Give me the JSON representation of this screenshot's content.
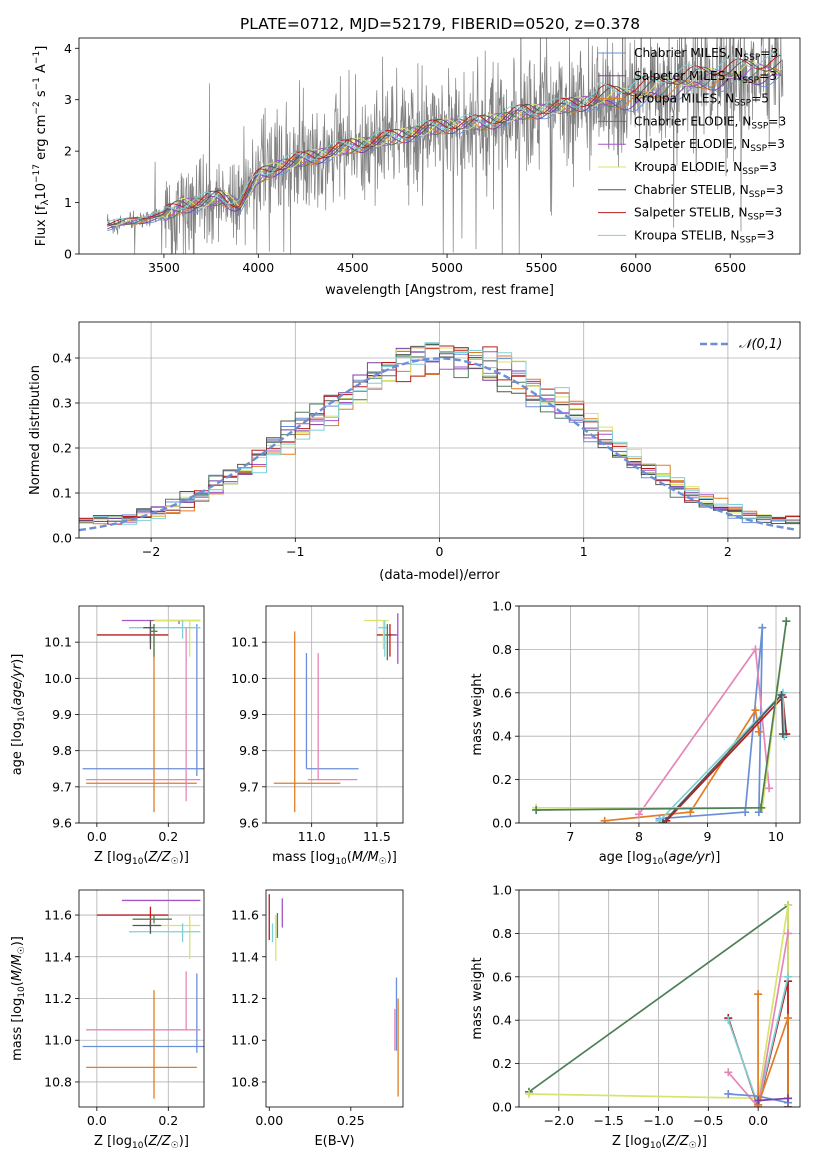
{
  "figure": {
    "title": "PLATE=0712, MJD=52179, FIBERID=0520, z=0.378"
  },
  "colors": {
    "Chabrier MILES": "#6a8fd8",
    "Salpeter MILES": "#7a3fa0",
    "Kroupa MILES": "#e07d25",
    "Chabrier ELODIE": "#4f7f5a",
    "Salpeter ELODIE": "#a555c7",
    "Kroupa ELODIE": "#d9e46c",
    "Chabrier STELIB": "#555555",
    "Salpeter STELIB": "#b81d1d",
    "Kroupa STELIB": "#7fd0d6",
    "observed": "#808080",
    "gaussian": "#6a8fd8",
    "pink": "#e586b8"
  },
  "chart_data": [
    {
      "id": "spectrum",
      "type": "line",
      "title": "PLATE=0712, MJD=52179, FIBERID=0520, z=0.378",
      "xlabel": "wavelength [Angstrom, rest frame]",
      "ylabel": "Flux [f_λ 10⁻¹⁷ erg cm⁻² s⁻¹ A⁻¹]",
      "xlim": [
        3050,
        6870
      ],
      "ylim": [
        0,
        4.2
      ],
      "xticks": [
        3500,
        4000,
        4500,
        5000,
        5500,
        6000,
        6500
      ],
      "yticks": [
        0,
        1,
        2,
        3,
        4
      ],
      "legend_position": "top-right",
      "model_anchors": {
        "x": [
          3200,
          3350,
          3500,
          3600,
          3700,
          3800,
          3900,
          4000,
          4100,
          4200,
          4300,
          4500,
          4700,
          4860,
          5000,
          5200,
          5400,
          5600,
          5800,
          6000,
          6200,
          6400,
          6600,
          6780
        ],
        "y": [
          0.55,
          0.65,
          0.75,
          0.95,
          1.0,
          1.1,
          0.95,
          1.5,
          1.7,
          1.8,
          1.9,
          2.1,
          2.25,
          2.4,
          2.5,
          2.55,
          2.75,
          2.85,
          3.0,
          3.1,
          3.3,
          3.45,
          3.55,
          3.6
        ]
      },
      "legend": [
        {
          "label": "Chabrier MILES, N",
          "sub": "SSP",
          "suffix": "=3"
        },
        {
          "label": "Salpeter MILES, N",
          "sub": "SSP",
          "suffix": "=3"
        },
        {
          "label": "Kroupa MILES, N",
          "sub": "SSP",
          "suffix": "=5"
        },
        {
          "label": "Chabrier ELODIE, N",
          "sub": "SSP",
          "suffix": "=3"
        },
        {
          "label": "Salpeter ELODIE, N",
          "sub": "SSP",
          "suffix": "=3"
        },
        {
          "label": "Kroupa ELODIE, N",
          "sub": "SSP",
          "suffix": "=3"
        },
        {
          "label": "Chabrier STELIB, N",
          "sub": "SSP",
          "suffix": "=3"
        },
        {
          "label": "Salpeter STELIB, N",
          "sub": "SSP",
          "suffix": "=3"
        },
        {
          "label": "Kroupa STELIB, N",
          "sub": "SSP",
          "suffix": "=3"
        }
      ]
    },
    {
      "id": "residuals",
      "type": "line",
      "xlabel": "(data-model)/error",
      "ylabel": "Normed distribution",
      "xlim": [
        -2.5,
        2.5
      ],
      "ylim": [
        0,
        0.48
      ],
      "xticks": [
        -2,
        -1,
        0,
        1,
        2
      ],
      "yticks": [
        0.0,
        0.1,
        0.2,
        0.3,
        0.4
      ],
      "grid": true,
      "legend": "𝒩(0,1)",
      "legend_position": "top-right",
      "bin_width": 0.1
    },
    {
      "id": "age_vs_z",
      "type": "scatter",
      "xlabel": "Z [log10(Z/Z☉)]",
      "ylabel": "age [log10(age/yr)]",
      "xlim": [
        -0.05,
        0.3
      ],
      "ylim": [
        9.6,
        10.2
      ],
      "xticks": [
        0.0,
        0.2
      ],
      "yticks": [
        9.6,
        9.7,
        9.8,
        9.9,
        10.0,
        10.1
      ],
      "grid": true,
      "points": [
        {
          "model": "Chabrier MILES",
          "x": 0.28,
          "y": 9.75,
          "xerr": [
            0.32,
            0.02
          ],
          "yerr": [
            0.02,
            0.4
          ]
        },
        {
          "model": "Kroupa MILES",
          "x": 0.16,
          "y": 9.71,
          "xerr": [
            0.19,
            0.12
          ],
          "yerr": [
            0.08,
            0.44
          ]
        },
        {
          "model": "pink",
          "x": 0.25,
          "y": 9.72,
          "xerr": [
            0.28,
            0.04
          ],
          "yerr": [
            0.06,
            0.42
          ]
        },
        {
          "model": "Salpeter STELIB",
          "x": 0.15,
          "y": 10.12,
          "xerr": [
            0.15,
            0.05
          ],
          "yerr": [
            0.02,
            0.02
          ]
        },
        {
          "model": "Salpeter ELODIE",
          "x": 0.23,
          "y": 10.16,
          "xerr": [
            0.16,
            0.06
          ],
          "yerr": [
            0.01,
            0.0
          ]
        },
        {
          "model": "Kroupa ELODIE",
          "x": 0.26,
          "y": 10.16,
          "xerr": [
            0.1,
            0.03
          ],
          "yerr": [
            0.1,
            0.0
          ]
        },
        {
          "model": "Kroupa STELIB",
          "x": 0.24,
          "y": 10.14,
          "xerr": [
            0.15,
            0.05
          ],
          "yerr": [
            0.03,
            0.02
          ]
        },
        {
          "model": "Chabrier STELIB",
          "x": 0.15,
          "y": 10.14,
          "xerr": [
            0.02,
            0.01
          ],
          "yerr": [
            0.06,
            0.02
          ]
        },
        {
          "model": "Chabrier ELODIE",
          "x": 0.16,
          "y": 10.13,
          "xerr": [
            0.01,
            0.01
          ],
          "yerr": [
            0.07,
            0.02
          ]
        }
      ]
    },
    {
      "id": "age_vs_mass",
      "type": "scatter",
      "xlabel": "mass [log10(M/M☉)]",
      "xlim": [
        10.65,
        11.7
      ],
      "ylim": [
        9.6,
        10.2
      ],
      "xticks": [
        11.0,
        11.5
      ],
      "yticks": [
        9.6,
        9.7,
        9.8,
        9.9,
        10.0,
        10.1
      ],
      "grid": true,
      "points": [
        {
          "model": "Chabrier MILES",
          "x": 10.96,
          "y": 9.75,
          "xerr": [
            0.0,
            0.4
          ],
          "yerr": [
            0.0,
            0.32
          ]
        },
        {
          "model": "Kroupa MILES",
          "x": 10.87,
          "y": 9.71,
          "xerr": [
            0.16,
            0.35
          ],
          "yerr": [
            0.08,
            0.42
          ]
        },
        {
          "model": "pink",
          "x": 11.05,
          "y": 9.72,
          "xerr": [
            0.08,
            0.3
          ],
          "yerr": [
            0.0,
            0.35
          ]
        },
        {
          "model": "Salpeter STELIB",
          "x": 11.6,
          "y": 10.12,
          "xerr": [
            0.1,
            0.05
          ],
          "yerr": [
            0.06,
            0.03
          ]
        },
        {
          "model": "Salpeter ELODIE",
          "x": 11.66,
          "y": 10.12,
          "xerr": [
            0.04,
            0.0
          ],
          "yerr": [
            0.08,
            0.06
          ]
        },
        {
          "model": "Kroupa ELODIE",
          "x": 11.55,
          "y": 10.16,
          "xerr": [
            0.15,
            0.04
          ],
          "yerr": [
            0.08,
            0.0
          ]
        },
        {
          "model": "Kroupa STELIB",
          "x": 11.56,
          "y": 10.14,
          "xerr": [
            0.05,
            0.02
          ],
          "yerr": [
            0.08,
            0.02
          ]
        },
        {
          "model": "Chabrier ELODIE",
          "x": 11.58,
          "y": 10.12,
          "xerr": [
            0.01,
            0.01
          ],
          "yerr": [
            0.07,
            0.03
          ]
        }
      ]
    },
    {
      "id": "weight_vs_age",
      "type": "line",
      "xlabel": "age [log10(age/yr)]",
      "ylabel": "mass weight",
      "xlim": [
        6.25,
        10.35
      ],
      "ylim": [
        0,
        1
      ],
      "xticks": [
        7,
        8,
        9,
        10
      ],
      "yticks": [
        0.0,
        0.2,
        0.4,
        0.6,
        0.8,
        1.0
      ],
      "grid": true,
      "series": [
        {
          "model": "Chabrier MILES",
          "x": [
            8.3,
            9.55,
            9.8,
            9.75
          ],
          "y": [
            0.02,
            0.05,
            0.9,
            0.05
          ]
        },
        {
          "model": "Kroupa MILES",
          "x": [
            7.5,
            8.75,
            9.7,
            9.75
          ],
          "y": [
            0.01,
            0.05,
            0.52,
            0.42
          ]
        },
        {
          "model": "pink",
          "x": [
            8.0,
            9.7,
            9.9
          ],
          "y": [
            0.04,
            0.8,
            0.16
          ]
        },
        {
          "model": "Salpeter STELIB",
          "x": [
            8.4,
            10.1,
            10.15
          ],
          "y": [
            0.01,
            0.58,
            0.41
          ]
        },
        {
          "model": "Kroupa STELIB",
          "x": [
            8.3,
            10.1,
            10.12
          ],
          "y": [
            0.01,
            0.6,
            0.4
          ]
        },
        {
          "model": "Chabrier STELIB",
          "x": [
            8.35,
            10.08,
            10.1
          ],
          "y": [
            0.0,
            0.59,
            0.41
          ]
        },
        {
          "model": "Kroupa ELODIE",
          "x": [
            6.5,
            9.8,
            10.15
          ],
          "y": [
            0.07,
            0.07,
            0.93
          ]
        },
        {
          "model": "Chabrier ELODIE",
          "x": [
            6.5,
            9.78,
            10.15
          ],
          "y": [
            0.06,
            0.07,
            0.93
          ]
        }
      ]
    },
    {
      "id": "mass_vs_z",
      "type": "scatter",
      "xlabel": "Z [log10(Z/Z☉)]",
      "ylabel": "mass [log10(M/M☉)]",
      "xlim": [
        -0.05,
        0.3
      ],
      "ylim": [
        10.68,
        11.72
      ],
      "xticks": [
        0.0,
        0.2
      ],
      "yticks": [
        10.8,
        11.0,
        11.2,
        11.4,
        11.6
      ],
      "grid": true,
      "points": [
        {
          "model": "Chabrier MILES",
          "x": 0.28,
          "y": 10.97,
          "xerr": [
            0.32,
            0.02
          ],
          "yerr": [
            0.03,
            0.35
          ]
        },
        {
          "model": "Kroupa MILES",
          "x": 0.16,
          "y": 10.87,
          "xerr": [
            0.19,
            0.12
          ],
          "yerr": [
            0.15,
            0.37
          ]
        },
        {
          "model": "pink",
          "x": 0.25,
          "y": 11.05,
          "xerr": [
            0.28,
            0.04
          ],
          "yerr": [
            0.0,
            0.28
          ]
        },
        {
          "model": "Salpeter STELIB",
          "x": 0.15,
          "y": 11.6,
          "xerr": [
            0.15,
            0.05
          ],
          "yerr": [
            0.06,
            0.04
          ]
        },
        {
          "model": "Salpeter ELODIE",
          "x": 0.23,
          "y": 11.67,
          "xerr": [
            0.16,
            0.06
          ],
          "yerr": [
            0.0,
            0.0
          ]
        },
        {
          "model": "Kroupa ELODIE",
          "x": 0.26,
          "y": 11.55,
          "xerr": [
            0.1,
            0.03
          ],
          "yerr": [
            0.16,
            0.05
          ]
        },
        {
          "model": "Kroupa STELIB",
          "x": 0.24,
          "y": 11.52,
          "xerr": [
            0.15,
            0.05
          ],
          "yerr": [
            0.05,
            0.04
          ]
        },
        {
          "model": "Chabrier STELIB",
          "x": 0.15,
          "y": 11.55,
          "xerr": [
            0.05,
            0.03
          ],
          "yerr": [
            0.04,
            0.02
          ]
        },
        {
          "model": "Chabrier ELODIE",
          "x": 0.16,
          "y": 11.58,
          "xerr": [
            0.06,
            0.05
          ],
          "yerr": [
            0.02,
            0.02
          ]
        }
      ]
    },
    {
      "id": "mass_vs_ebv",
      "type": "scatter",
      "xlabel": "E(B-V)",
      "xlim": [
        -0.01,
        0.41
      ],
      "ylim": [
        10.68,
        11.72
      ],
      "xticks": [
        0.0,
        0.25
      ],
      "yticks": [
        10.8,
        11.0,
        11.2,
        11.4,
        11.6
      ],
      "points": [
        {
          "model": "Salpeter STELIB",
          "x": 0.0,
          "y": 11.6,
          "yerr": [
            0.12,
            0.1
          ]
        },
        {
          "model": "Kroupa STELIB",
          "x": 0.01,
          "y": 11.52,
          "yerr": [
            0.05,
            0.04
          ]
        },
        {
          "model": "Kroupa ELODIE",
          "x": 0.02,
          "y": 11.5,
          "yerr": [
            0.12,
            0.1
          ]
        },
        {
          "model": "Chabrier ELODIE",
          "x": 0.025,
          "y": 11.55,
          "yerr": [
            0.06,
            0.06
          ]
        },
        {
          "model": "Salpeter ELODIE",
          "x": 0.04,
          "y": 11.6,
          "yerr": [
            0.06,
            0.08
          ]
        },
        {
          "model": "Chabrier MILES",
          "x": 0.39,
          "y": 11.1,
          "yerr": [
            0.15,
            0.2
          ]
        },
        {
          "model": "Kroupa MILES",
          "x": 0.395,
          "y": 10.95,
          "yerr": [
            0.22,
            0.25
          ]
        },
        {
          "model": "pink",
          "x": 0.385,
          "y": 11.05,
          "yerr": [
            0.1,
            0.1
          ]
        }
      ]
    },
    {
      "id": "weight_vs_z",
      "type": "line",
      "xlabel": "Z [log10(Z/Z☉)]",
      "ylabel": "mass weight",
      "xlim": [
        -2.4,
        0.42
      ],
      "ylim": [
        0,
        1
      ],
      "xticks": [
        -2.0,
        -1.5,
        -1.0,
        -0.5,
        0.0
      ],
      "yticks": [
        0.0,
        0.2,
        0.4,
        0.6,
        0.8,
        1.0
      ],
      "grid": true,
      "series": [
        {
          "model": "Chabrier ELODIE",
          "x": [
            -2.3,
            0.3,
            0.3,
            0.3
          ],
          "y": [
            0.07,
            0.93,
            0.0,
            0.93
          ]
        },
        {
          "model": "Kroupa ELODIE",
          "x": [
            -2.3,
            0.0,
            0.3,
            0.3
          ],
          "y": [
            0.06,
            0.04,
            0.93,
            0.0
          ]
        },
        {
          "model": "Salpeter STELIB",
          "x": [
            -0.3,
            0.0,
            0.3,
            0.3
          ],
          "y": [
            0.41,
            0.0,
            0.58,
            0.0
          ]
        },
        {
          "model": "Kroupa STELIB",
          "x": [
            -0.3,
            0.0,
            0.3
          ],
          "y": [
            0.4,
            0.01,
            0.6
          ]
        },
        {
          "model": "pink",
          "x": [
            -0.3,
            0.0,
            0.3
          ],
          "y": [
            0.16,
            0.0,
            0.8
          ]
        },
        {
          "model": "Chabrier MILES",
          "x": [
            -0.3,
            0.0,
            0.3
          ],
          "y": [
            0.06,
            0.05,
            0.02
          ]
        },
        {
          "model": "Kroupa MILES",
          "x": [
            0.0,
            0.0,
            0.3,
            0.3
          ],
          "y": [
            0.52,
            0.01,
            0.41,
            0.04
          ]
        },
        {
          "model": "Salpeter MILES",
          "x": [
            0.0,
            0.3
          ],
          "y": [
            0.03,
            0.04
          ]
        }
      ]
    }
  ]
}
